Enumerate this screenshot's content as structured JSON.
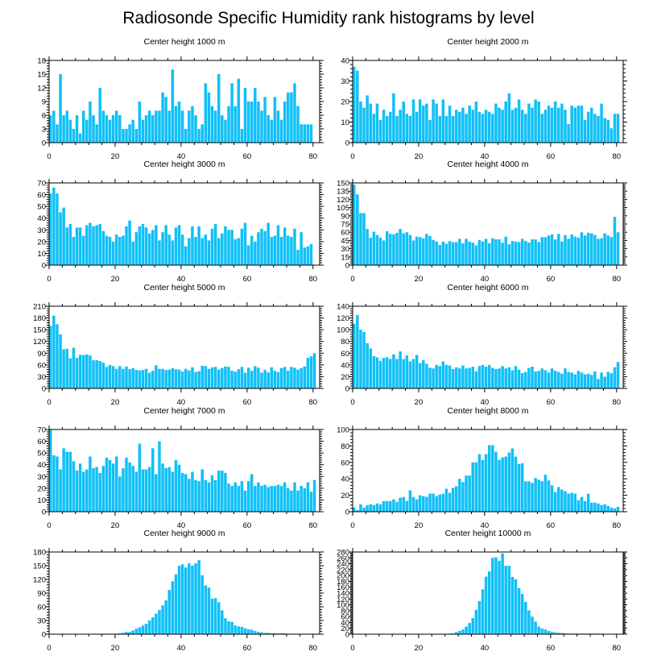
{
  "figure": {
    "title": "Radiosonde Specific Humidity rank histograms by level"
  },
  "chart_data": [
    {
      "type": "bar",
      "title": "Center height 1000 m",
      "xlim": [
        0,
        82
      ],
      "ylim": [
        0,
        18
      ],
      "xticks": [
        0,
        20,
        40,
        60,
        80
      ],
      "yticks": [
        0,
        3,
        6,
        9,
        12,
        15,
        18
      ],
      "values": [
        6,
        7,
        4,
        15,
        6,
        7,
        5,
        3,
        6,
        2,
        7,
        5,
        9,
        6,
        4,
        12,
        7,
        6,
        5,
        6,
        7,
        6,
        3,
        3,
        4,
        5,
        3,
        9,
        5,
        6,
        7,
        6,
        7,
        7,
        11,
        10,
        7,
        16,
        8,
        9,
        7,
        3,
        7,
        8,
        6,
        3,
        4,
        13,
        11,
        8,
        7,
        15,
        6,
        5,
        8,
        13,
        8,
        14,
        3,
        12,
        9,
        9,
        12,
        9,
        7,
        10,
        6,
        5,
        10,
        7,
        5,
        9,
        11,
        11,
        13,
        8,
        4,
        4,
        4,
        4
      ]
    },
    {
      "type": "bar",
      "title": "Center height 2000 m",
      "xlim": [
        0,
        82
      ],
      "ylim": [
        0,
        40
      ],
      "xticks": [
        0,
        20,
        40,
        60,
        80
      ],
      "yticks": [
        0,
        10,
        20,
        30,
        40
      ],
      "values": [
        37,
        35,
        20,
        17,
        23,
        19,
        14,
        19,
        11,
        16,
        13,
        15,
        24,
        13,
        16,
        20,
        14,
        13,
        21,
        15,
        21,
        18,
        19,
        11,
        21,
        19,
        13,
        21,
        13,
        18,
        13,
        16,
        15,
        17,
        14,
        18,
        16,
        20,
        15,
        14,
        16,
        15,
        14,
        19,
        17,
        16,
        20,
        24,
        16,
        17,
        21,
        16,
        14,
        19,
        17,
        21,
        20,
        14,
        16,
        18,
        17,
        20,
        17,
        19,
        16,
        9,
        18,
        17,
        18,
        18,
        11,
        15,
        17,
        14,
        13,
        19,
        12,
        11,
        7,
        14,
        14
      ]
    },
    {
      "type": "bar",
      "title": "Center height 3000 m",
      "xlim": [
        0,
        82
      ],
      "ylim": [
        0,
        70
      ],
      "xticks": [
        0,
        20,
        40,
        60,
        80
      ],
      "yticks": [
        0,
        10,
        20,
        30,
        40,
        50,
        60,
        70
      ],
      "values": [
        61,
        66,
        61,
        45,
        49,
        32,
        35,
        24,
        32,
        32,
        25,
        34,
        36,
        33,
        34,
        35,
        29,
        25,
        24,
        20,
        26,
        24,
        25,
        33,
        38,
        20,
        28,
        33,
        35,
        32,
        27,
        30,
        34,
        21,
        28,
        34,
        26,
        21,
        32,
        34,
        26,
        16,
        23,
        33,
        24,
        33,
        23,
        26,
        21,
        31,
        35,
        23,
        27,
        33,
        30,
        30,
        22,
        23,
        31,
        36,
        17,
        25,
        20,
        28,
        31,
        29,
        36,
        24,
        25,
        34,
        24,
        32,
        25,
        24,
        31,
        13,
        28,
        15,
        16,
        18
      ]
    },
    {
      "type": "bar",
      "title": "Center height 4000 m",
      "xlim": [
        0,
        82
      ],
      "ylim": [
        0,
        150
      ],
      "xticks": [
        0,
        20,
        40,
        60,
        80
      ],
      "yticks": [
        0,
        15,
        30,
        45,
        60,
        75,
        90,
        105,
        120,
        135,
        150
      ],
      "values": [
        147,
        129,
        95,
        95,
        66,
        50,
        61,
        55,
        50,
        45,
        62,
        57,
        56,
        59,
        66,
        58,
        60,
        55,
        45,
        52,
        51,
        49,
        57,
        53,
        46,
        43,
        37,
        43,
        39,
        44,
        42,
        42,
        48,
        40,
        48,
        43,
        41,
        36,
        46,
        43,
        48,
        40,
        49,
        47,
        47,
        41,
        52,
        38,
        44,
        43,
        42,
        48,
        44,
        41,
        47,
        47,
        42,
        51,
        51,
        54,
        56,
        47,
        57,
        43,
        55,
        48,
        56,
        52,
        50,
        60,
        54,
        59,
        58,
        55,
        48,
        49,
        58,
        54,
        51,
        88,
        60
      ]
    },
    {
      "type": "bar",
      "title": "Center height 5000 m",
      "xlim": [
        0,
        82
      ],
      "ylim": [
        0,
        210
      ],
      "xticks": [
        0,
        20,
        40,
        60,
        80
      ],
      "yticks": [
        0,
        30,
        60,
        90,
        120,
        150,
        180,
        210
      ],
      "values": [
        160,
        186,
        164,
        138,
        100,
        101,
        77,
        104,
        78,
        86,
        85,
        87,
        84,
        72,
        72,
        70,
        66,
        55,
        60,
        57,
        50,
        57,
        50,
        56,
        49,
        52,
        47,
        46,
        47,
        50,
        40,
        45,
        59,
        50,
        50,
        47,
        48,
        52,
        49,
        48,
        43,
        50,
        46,
        54,
        42,
        44,
        58,
        57,
        50,
        54,
        55,
        48,
        52,
        56,
        55,
        45,
        43,
        49,
        55,
        40,
        53,
        45,
        57,
        53,
        40,
        47,
        41,
        54,
        45,
        42,
        52,
        55,
        45,
        55,
        53,
        48,
        52,
        56,
        78,
        82,
        90
      ]
    },
    {
      "type": "bar",
      "title": "Center height 6000 m",
      "xlim": [
        0,
        82
      ],
      "ylim": [
        0,
        140
      ],
      "xticks": [
        0,
        20,
        40,
        60,
        80
      ],
      "yticks": [
        0,
        20,
        40,
        60,
        80,
        100,
        120,
        140
      ],
      "values": [
        110,
        125,
        100,
        96,
        77,
        68,
        55,
        53,
        47,
        52,
        53,
        50,
        58,
        50,
        63,
        50,
        56,
        46,
        50,
        57,
        43,
        48,
        42,
        35,
        34,
        40,
        38,
        46,
        40,
        39,
        33,
        36,
        34,
        39,
        34,
        35,
        37,
        29,
        38,
        40,
        37,
        40,
        35,
        33,
        34,
        38,
        34,
        36,
        31,
        38,
        32,
        26,
        28,
        35,
        37,
        29,
        30,
        34,
        31,
        27,
        34,
        30,
        28,
        25,
        34,
        28,
        27,
        24,
        30,
        27,
        24,
        25,
        23,
        29,
        16,
        27,
        20,
        28,
        26,
        36,
        45
      ]
    },
    {
      "type": "bar",
      "title": "Center height 7000 m",
      "xlim": [
        0,
        82
      ],
      "ylim": [
        0,
        70
      ],
      "xticks": [
        0,
        20,
        40,
        60,
        80
      ],
      "yticks": [
        0,
        10,
        20,
        30,
        40,
        50,
        60,
        70
      ],
      "values": [
        70,
        48,
        47,
        36,
        54,
        51,
        51,
        43,
        35,
        41,
        34,
        36,
        47,
        37,
        38,
        33,
        39,
        46,
        44,
        41,
        47,
        30,
        37,
        46,
        42,
        39,
        34,
        58,
        36,
        36,
        38,
        54,
        32,
        60,
        41,
        37,
        38,
        34,
        44,
        40,
        33,
        32,
        28,
        34,
        27,
        26,
        36,
        27,
        25,
        31,
        27,
        35,
        35,
        33,
        24,
        22,
        25,
        22,
        26,
        18,
        26,
        32,
        22,
        25,
        22,
        23,
        21,
        22,
        22,
        23,
        22,
        25,
        20,
        18,
        25,
        18,
        22,
        20,
        25,
        17,
        27
      ]
    },
    {
      "type": "bar",
      "title": "Center height 8000 m",
      "xlim": [
        0,
        82
      ],
      "ylim": [
        0,
        100
      ],
      "xticks": [
        0,
        20,
        40,
        60,
        80
      ],
      "yticks": [
        0,
        20,
        40,
        60,
        80,
        100
      ],
      "values": [
        5,
        2,
        9,
        5,
        8,
        9,
        8,
        10,
        9,
        13,
        13,
        13,
        15,
        12,
        17,
        18,
        13,
        26,
        18,
        15,
        20,
        19,
        18,
        22,
        22,
        19,
        21,
        22,
        28,
        23,
        29,
        31,
        40,
        36,
        44,
        44,
        60,
        60,
        70,
        63,
        70,
        81,
        81,
        73,
        63,
        66,
        67,
        72,
        77,
        67,
        58,
        59,
        37,
        37,
        35,
        41,
        39,
        37,
        45,
        38,
        32,
        24,
        30,
        27,
        25,
        22,
        23,
        22,
        14,
        18,
        13,
        22,
        11,
        11,
        10,
        8,
        9,
        7,
        5,
        4,
        6
      ]
    },
    {
      "type": "bar",
      "title": "Center height 9000 m",
      "xlim": [
        0,
        82
      ],
      "ylim": [
        0,
        180
      ],
      "xticks": [
        0,
        20,
        40,
        60,
        80
      ],
      "yticks": [
        0,
        30,
        60,
        90,
        120,
        150,
        180
      ],
      "values": [
        0,
        0,
        0,
        0,
        0,
        0,
        0,
        0,
        0,
        0,
        0,
        0,
        0,
        0,
        0,
        1,
        1,
        1,
        1,
        1,
        1,
        2,
        3,
        5,
        5,
        8,
        12,
        15,
        19,
        23,
        30,
        37,
        45,
        53,
        63,
        74,
        97,
        116,
        131,
        150,
        153,
        146,
        155,
        150,
        155,
        162,
        129,
        107,
        102,
        78,
        79,
        70,
        52,
        35,
        28,
        27,
        19,
        17,
        16,
        13,
        11,
        10,
        7,
        5,
        4,
        3,
        3,
        2,
        2,
        2,
        2,
        2,
        1,
        1,
        1,
        1,
        1,
        1,
        1,
        0,
        0
      ]
    },
    {
      "type": "bar",
      "title": "Center height 10000 m",
      "xlim": [
        0,
        82
      ],
      "ylim": [
        0,
        280
      ],
      "xticks": [
        0,
        20,
        40,
        60,
        80
      ],
      "yticks": [
        0,
        20,
        40,
        60,
        80,
        100,
        120,
        140,
        160,
        180,
        200,
        220,
        240,
        260,
        280
      ],
      "values": [
        0,
        0,
        0,
        0,
        0,
        0,
        0,
        0,
        0,
        0,
        0,
        0,
        0,
        0,
        0,
        0,
        0,
        0,
        0,
        0,
        0,
        0,
        0,
        0,
        0,
        0,
        1,
        1,
        1,
        2,
        3,
        7,
        11,
        16,
        26,
        38,
        55,
        83,
        113,
        153,
        196,
        214,
        260,
        262,
        250,
        275,
        233,
        233,
        195,
        187,
        157,
        137,
        110,
        81,
        60,
        43,
        26,
        19,
        16,
        11,
        8,
        6,
        5,
        4,
        3,
        2,
        2,
        2,
        2,
        2,
        2,
        2,
        2,
        2,
        2,
        2,
        1,
        1,
        1,
        1,
        0
      ]
    }
  ]
}
